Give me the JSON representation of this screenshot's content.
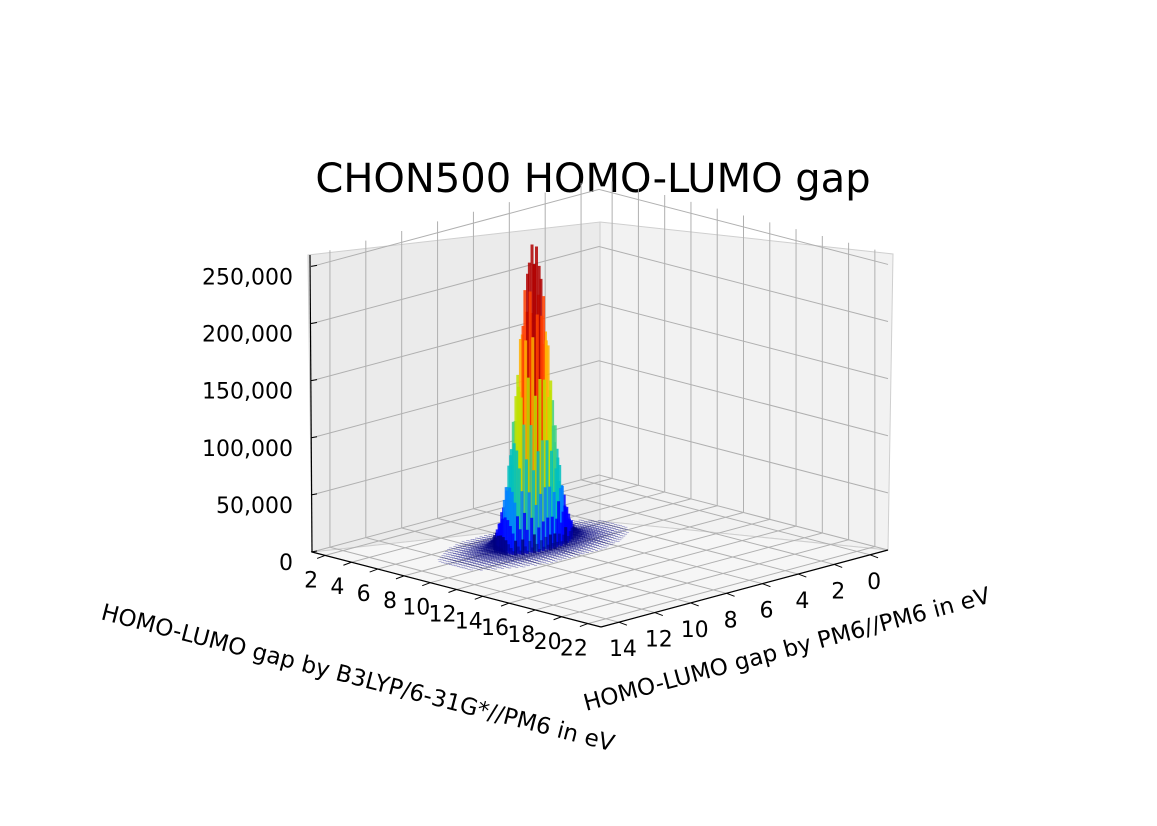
{
  "chart_data": {
    "type": "bar3d",
    "title": "CHON500 HOMO-LUMO gap",
    "xlabel": "HOMO-LUMO gap by B3LYP/6-31G*//PM6 in eV",
    "ylabel": "HOMO-LUMO gap by PM6//PM6 in eV",
    "zlabel": "",
    "x_ticks": [
      "2",
      "4",
      "6",
      "8",
      "10",
      "12",
      "14",
      "16",
      "18",
      "20",
      "22"
    ],
    "y_ticks": [
      "0",
      "2",
      "4",
      "6",
      "8",
      "10",
      "12",
      "14"
    ],
    "z_ticks": [
      "0",
      "50,000",
      "100,000",
      "150,000",
      "200,000",
      "250,000"
    ],
    "xlim": [
      1,
      23
    ],
    "ylim": [
      -1,
      15
    ],
    "zlim": [
      0,
      260000
    ],
    "peak": {
      "x": 8.6,
      "y": 8.2,
      "count": 260000
    },
    "spread": {
      "x_sigma": 0.55,
      "y_sigma": 0.75
    },
    "colormap": [
      "#00007f",
      "#0000ff",
      "#0080ff",
      "#00c0c0",
      "#40d080",
      "#c0e000",
      "#ffb000",
      "#ff4000",
      "#b00000"
    ],
    "grid": true
  }
}
